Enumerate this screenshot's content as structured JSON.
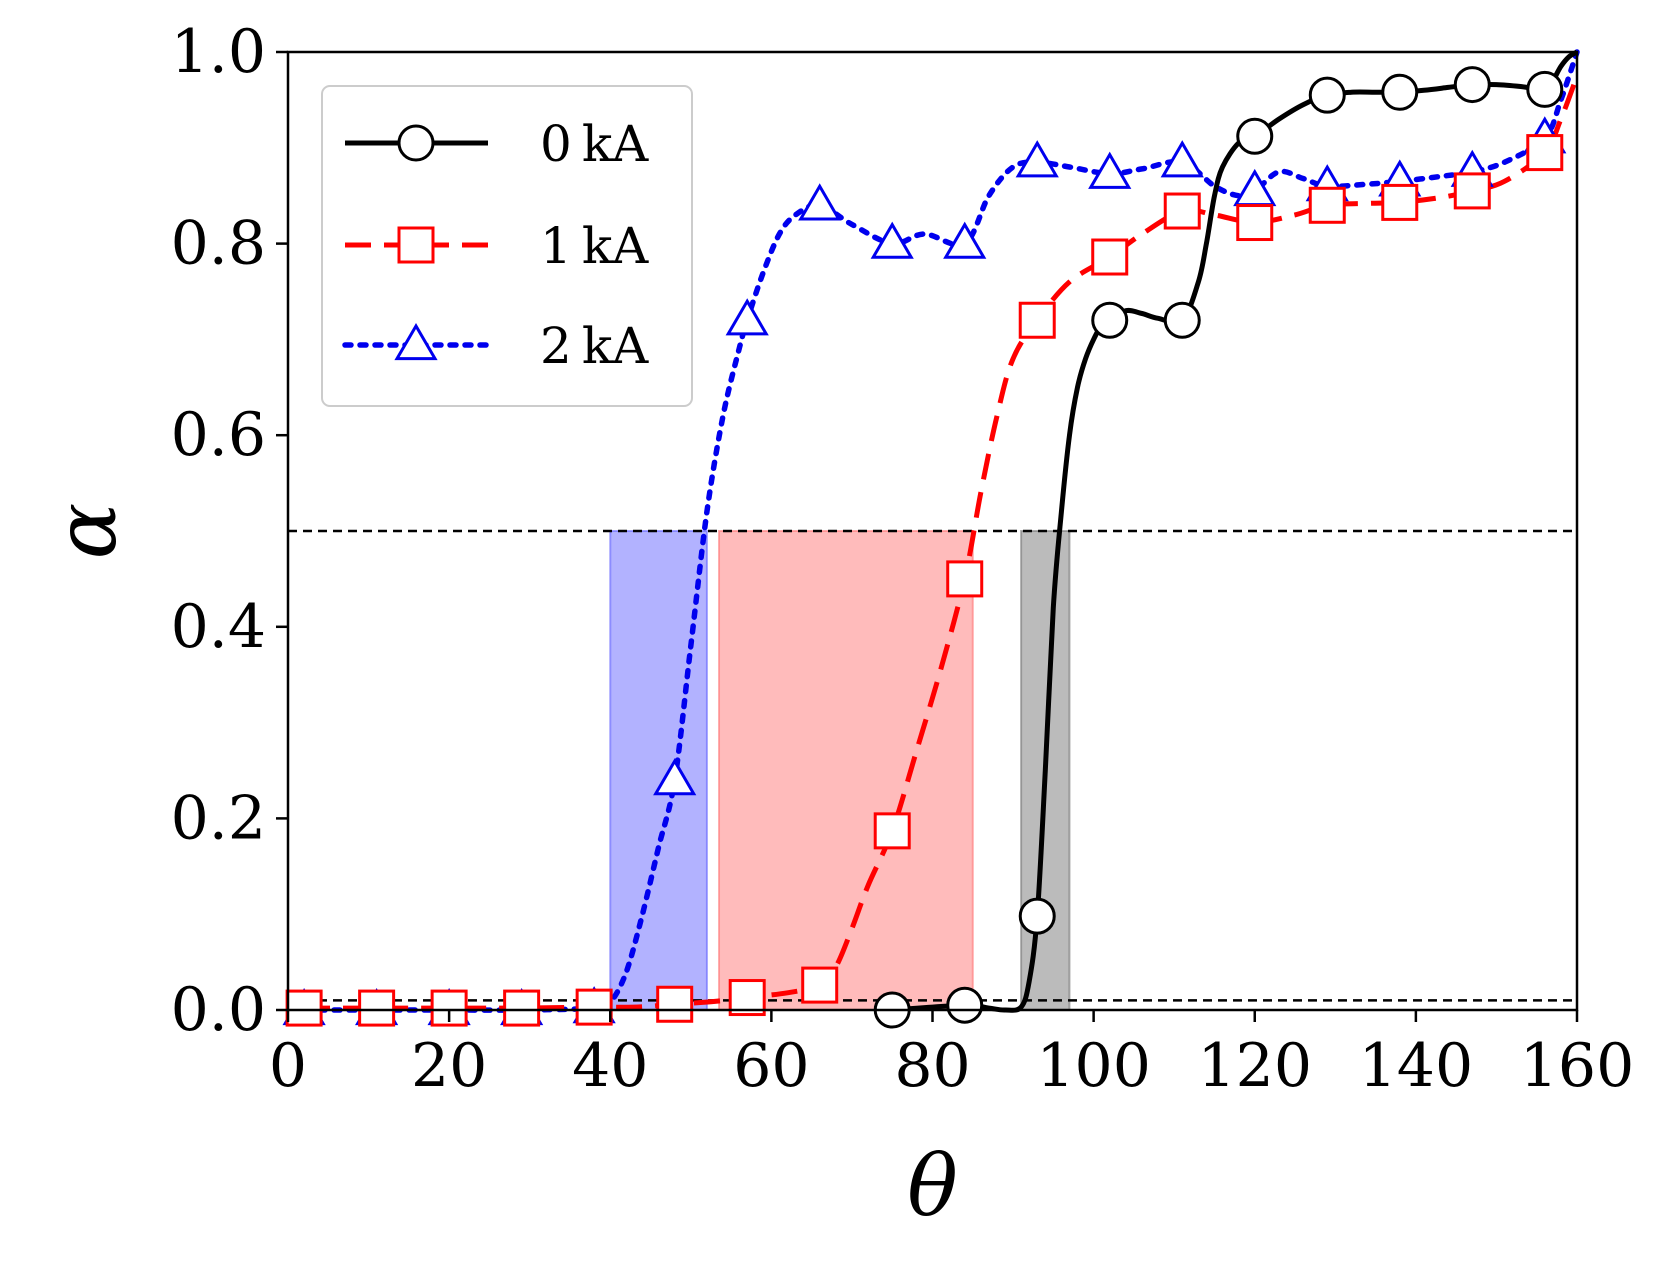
{
  "chart_data": {
    "type": "line",
    "title": "",
    "xlabel": "θ",
    "ylabel": "α",
    "xlim": [
      0,
      160
    ],
    "ylim": [
      0,
      1.0
    ],
    "xticks": [
      0,
      20,
      40,
      60,
      80,
      100,
      120,
      140,
      160
    ],
    "yticks": [
      0.0,
      0.2,
      0.4,
      0.6,
      0.8,
      1.0
    ],
    "xtick_labels": [
      "0",
      "20",
      "40",
      "60",
      "80",
      "100",
      "120",
      "140",
      "160"
    ],
    "ytick_labels": [
      "0.0",
      "0.2",
      "0.4",
      "0.6",
      "0.8",
      "1.0"
    ],
    "grid": false,
    "legend_position": "top-left",
    "reference_lines": [
      {
        "axis": "y",
        "value": 0.5,
        "style": "dashed",
        "color": "#000000"
      },
      {
        "axis": "y",
        "value": 0.01,
        "style": "dashed",
        "color": "#000000"
      }
    ],
    "shaded_bands": [
      {
        "series": "2 kA",
        "x0": 40,
        "x1": 52,
        "y0": 0,
        "y1": 0.5,
        "color": "#6666ff"
      },
      {
        "series": "1 kA",
        "x0": 53.5,
        "x1": 85,
        "y0": 0,
        "y1": 0.5,
        "color": "#ff7777"
      },
      {
        "series": "0 kA",
        "x0": 91,
        "x1": 97,
        "y0": 0,
        "y1": 0.5,
        "color": "#777777"
      }
    ],
    "series": [
      {
        "name": "0 kA",
        "color": "#000000",
        "line_style": "solid",
        "marker": "circle",
        "marker_x": [
          75,
          84,
          93,
          102,
          111,
          120,
          129,
          138,
          147,
          156
        ],
        "marker_y": [
          0.0,
          0.005,
          0.098,
          0.72,
          0.72,
          0.912,
          0.955,
          0.958,
          0.966,
          0.961
        ],
        "curve_x": [
          75,
          84,
          87,
          89,
          91,
          92,
          93,
          94,
          95,
          96,
          97,
          98,
          99,
          100,
          101,
          102,
          104,
          106,
          108,
          111,
          113,
          114,
          115,
          116,
          118,
          120,
          123,
          126,
          129,
          132,
          135,
          138,
          141,
          144,
          147,
          150,
          153,
          156,
          157,
          158,
          159,
          160
        ],
        "curve_y": [
          0.0,
          0.005,
          0.002,
          0.0,
          0.003,
          0.03,
          0.098,
          0.25,
          0.42,
          0.52,
          0.6,
          0.65,
          0.68,
          0.7,
          0.715,
          0.72,
          0.73,
          0.727,
          0.722,
          0.72,
          0.76,
          0.8,
          0.85,
          0.88,
          0.905,
          0.912,
          0.93,
          0.945,
          0.955,
          0.958,
          0.958,
          0.958,
          0.96,
          0.963,
          0.966,
          0.966,
          0.964,
          0.961,
          0.97,
          0.985,
          0.995,
          1.0
        ]
      },
      {
        "name": "1 kA",
        "color": "#ff0000",
        "line_style": "dashed",
        "marker": "square",
        "marker_x": [
          2,
          11,
          20,
          29,
          38,
          48,
          57,
          66,
          75,
          84,
          93,
          102,
          111,
          120,
          129,
          138,
          147,
          156
        ],
        "marker_y": [
          0.002,
          0.002,
          0.002,
          0.002,
          0.003,
          0.006,
          0.013,
          0.026,
          0.187,
          0.45,
          0.72,
          0.786,
          0.834,
          0.822,
          0.84,
          0.843,
          0.855,
          0.895
        ],
        "curve_x": [
          2,
          11,
          20,
          29,
          38,
          43,
          48,
          53,
          57,
          62,
          66,
          68,
          70,
          72,
          75,
          78,
          81,
          84,
          86,
          88,
          90,
          93,
          97,
          102,
          106,
          111,
          115,
          120,
          125,
          129,
          134,
          138,
          143,
          147,
          151,
          156,
          158,
          160
        ],
        "curve_y": [
          0.002,
          0.002,
          0.002,
          0.002,
          0.003,
          0.003,
          0.006,
          0.009,
          0.013,
          0.018,
          0.026,
          0.045,
          0.085,
          0.13,
          0.187,
          0.27,
          0.355,
          0.45,
          0.54,
          0.62,
          0.68,
          0.72,
          0.76,
          0.786,
          0.81,
          0.834,
          0.83,
          0.822,
          0.83,
          0.84,
          0.842,
          0.843,
          0.848,
          0.855,
          0.865,
          0.895,
          0.93,
          0.975
        ]
      },
      {
        "name": "2 kA",
        "color": "#0000ee",
        "line_style": "dotted",
        "marker": "triangle",
        "marker_x": [
          2,
          11,
          20,
          29,
          38,
          48,
          57,
          66,
          75,
          84,
          93,
          102,
          111,
          120,
          129,
          138,
          147,
          156
        ],
        "marker_y": [
          0.0,
          0.0,
          0.0,
          0.0,
          0.002,
          0.24,
          0.72,
          0.84,
          0.8,
          0.8,
          0.885,
          0.873,
          0.885,
          0.855,
          0.86,
          0.865,
          0.875,
          0.91
        ],
        "curve_x": [
          2,
          11,
          20,
          29,
          38,
          40,
          42,
          44,
          46,
          48,
          50,
          52,
          54,
          56,
          57,
          59,
          61,
          63,
          66,
          70,
          75,
          79,
          84,
          87,
          90,
          93,
          97,
          102,
          106,
          111,
          115,
          118,
          120,
          123,
          126,
          129,
          134,
          138,
          143,
          147,
          151,
          156,
          158,
          160
        ],
        "curve_y": [
          0.0,
          0.0,
          0.0,
          0.0,
          0.002,
          0.008,
          0.04,
          0.1,
          0.17,
          0.24,
          0.38,
          0.52,
          0.62,
          0.69,
          0.72,
          0.77,
          0.81,
          0.83,
          0.84,
          0.82,
          0.8,
          0.81,
          0.8,
          0.85,
          0.88,
          0.885,
          0.88,
          0.873,
          0.878,
          0.885,
          0.86,
          0.85,
          0.855,
          0.875,
          0.868,
          0.86,
          0.862,
          0.865,
          0.87,
          0.875,
          0.885,
          0.91,
          0.95,
          1.0
        ]
      }
    ]
  },
  "legend": {
    "items": [
      {
        "num": "0",
        "unit": "kA"
      },
      {
        "num": "1",
        "unit": "kA"
      },
      {
        "num": "2",
        "unit": "kA"
      }
    ]
  }
}
